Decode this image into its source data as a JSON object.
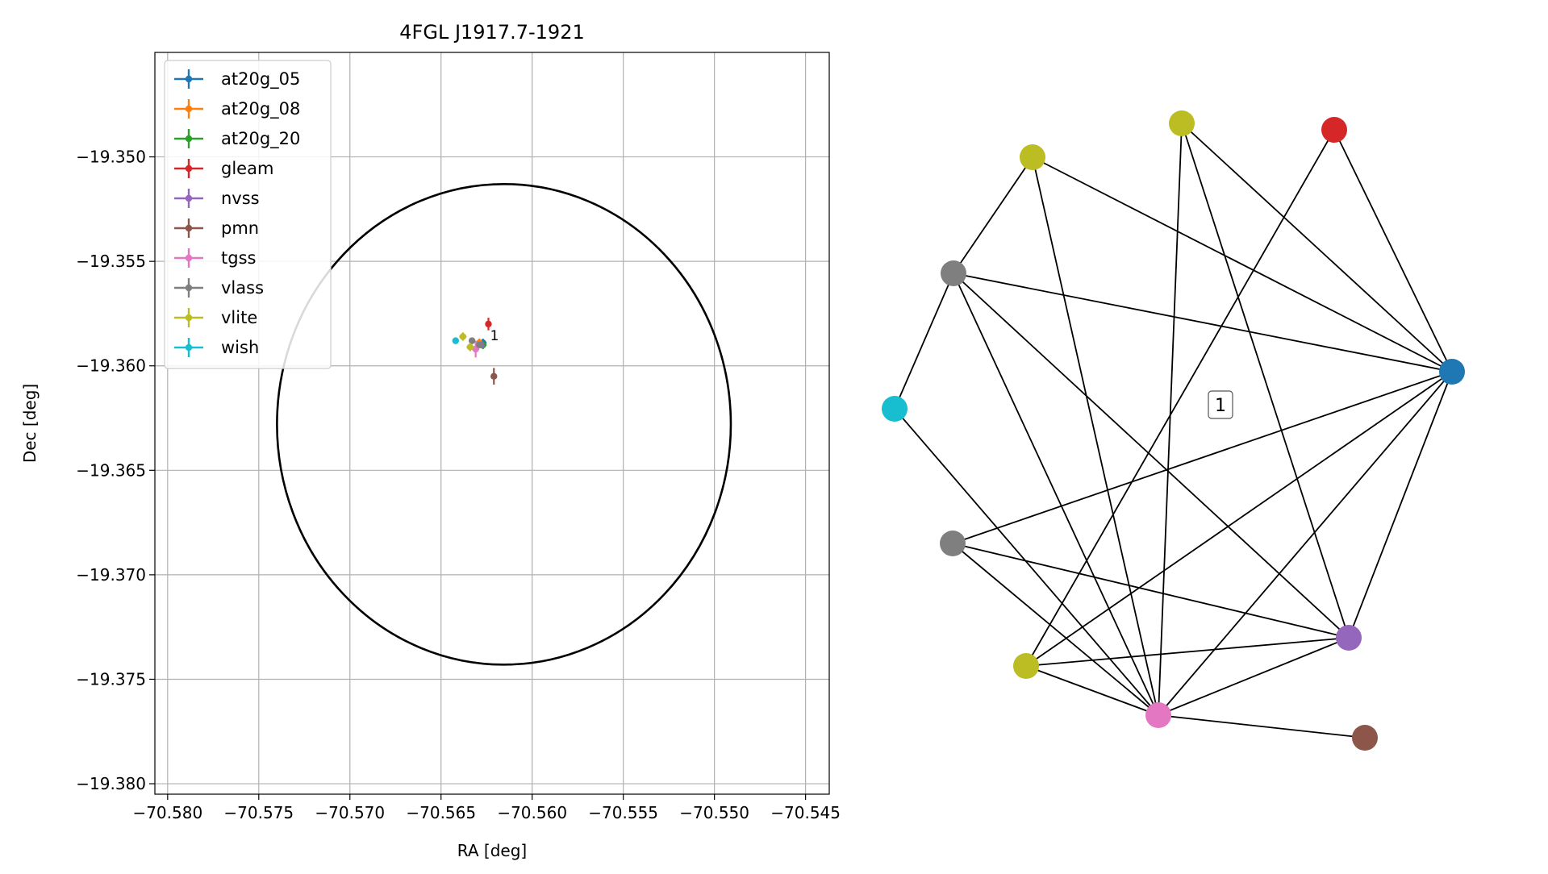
{
  "chart_data": [
    {
      "type": "scatter",
      "title": "4FGL J1917.7-1921",
      "xlabel": "RA [deg]",
      "ylabel": "Dec [deg]",
      "xlim": [
        -70.5807,
        -70.5437
      ],
      "ylim": [
        -19.3805,
        -19.345
      ],
      "x_ticks": [
        -70.58,
        -70.575,
        -70.57,
        -70.565,
        -70.56,
        -70.555,
        -70.55,
        -70.545
      ],
      "x_tick_labels": [
        "−70.580",
        "−70.575",
        "−70.570",
        "−70.565",
        "−70.560",
        "−70.555",
        "−70.550",
        "−70.545"
      ],
      "y_ticks": [
        -19.35,
        -19.355,
        -19.36,
        -19.365,
        -19.37,
        -19.375,
        -19.38
      ],
      "y_tick_labels": [
        "−19.350",
        "−19.355",
        "−19.360",
        "−19.365",
        "−19.370",
        "−19.375",
        "−19.380"
      ],
      "grid": true,
      "legend_position": "upper-left",
      "ellipse": {
        "center": [
          -70.56155,
          -19.3628
        ],
        "ra_semi_axis": 0.01245,
        "dec_semi_axis": 0.0115,
        "color": "#000000"
      },
      "series": [
        {
          "name": "at20g_05",
          "color": "#1f77b4",
          "points": [
            {
              "x": -70.5627,
              "y": -19.3589,
              "xerr": 0.0002,
              "yerr": 0.0002
            }
          ]
        },
        {
          "name": "at20g_08",
          "color": "#ff7f0e",
          "points": [
            {
              "x": -70.5629,
              "y": -19.3589,
              "xerr": 0.0002,
              "yerr": 0.0002
            }
          ]
        },
        {
          "name": "at20g_20",
          "color": "#2ca02c",
          "points": [
            {
              "x": -70.5627,
              "y": -19.359,
              "xerr": 0.0002,
              "yerr": 0.0002
            }
          ]
        },
        {
          "name": "gleam",
          "color": "#d62728",
          "points": [
            {
              "x": -70.5624,
              "y": -19.358,
              "xerr": 0.0001,
              "yerr": 0.0003
            }
          ]
        },
        {
          "name": "nvss",
          "color": "#9467bd",
          "points": [
            {
              "x": -70.5628,
              "y": -19.359,
              "xerr": 0.0001,
              "yerr": 0.0001
            }
          ]
        },
        {
          "name": "pmn",
          "color": "#8c564b",
          "points": [
            {
              "x": -70.5621,
              "y": -19.3605,
              "xerr": 0.0001,
              "yerr": 0.0004
            }
          ]
        },
        {
          "name": "tgss",
          "color": "#e377c2",
          "points": [
            {
              "x": -70.5631,
              "y": -19.3592,
              "xerr": 0.0002,
              "yerr": 0.0004
            }
          ]
        },
        {
          "name": "vlass",
          "color": "#7f7f7f",
          "points": [
            {
              "x": -70.5633,
              "y": -19.3588,
              "xerr": 0.0001,
              "yerr": 0.0001
            },
            {
              "x": -70.5629,
              "y": -19.359,
              "xerr": 0.0001,
              "yerr": 0.0001
            }
          ]
        },
        {
          "name": "vlite",
          "color": "#bcbd22",
          "points": [
            {
              "x": -70.5638,
              "y": -19.3586,
              "xerr": 0.0002,
              "yerr": 0.0002
            },
            {
              "x": -70.5634,
              "y": -19.3591,
              "xerr": 0.0002,
              "yerr": 0.0002
            }
          ]
        },
        {
          "name": "wish",
          "color": "#17becf",
          "points": [
            {
              "x": -70.5642,
              "y": -19.3588,
              "xerr": 0.0001,
              "yerr": 0.0001
            }
          ]
        }
      ],
      "annotations": [
        {
          "text": "1",
          "x": -70.5622,
          "y": -19.3585
        }
      ]
    },
    {
      "type": "network",
      "annotation": "1",
      "nodes": [
        {
          "id": 0,
          "color": "#bcbd22"
        },
        {
          "id": 1,
          "color": "#bcbd22"
        },
        {
          "id": 2,
          "color": "#d62728"
        },
        {
          "id": 3,
          "color": "#7f7f7f"
        },
        {
          "id": 4,
          "color": "#1f77b4"
        },
        {
          "id": 5,
          "color": "#17becf"
        },
        {
          "id": 6,
          "color": "#7f7f7f"
        },
        {
          "id": 7,
          "color": "#9467bd"
        },
        {
          "id": 8,
          "color": "#bcbd22"
        },
        {
          "id": 9,
          "color": "#e377c2"
        },
        {
          "id": 10,
          "color": "#8c564b"
        }
      ],
      "edges": [
        [
          0,
          3
        ],
        [
          0,
          4
        ],
        [
          0,
          9
        ],
        [
          1,
          4
        ],
        [
          1,
          9
        ],
        [
          1,
          7
        ],
        [
          2,
          4
        ],
        [
          2,
          8
        ],
        [
          3,
          5
        ],
        [
          3,
          4
        ],
        [
          3,
          9
        ],
        [
          3,
          7
        ],
        [
          4,
          6
        ],
        [
          4,
          8
        ],
        [
          4,
          9
        ],
        [
          4,
          7
        ],
        [
          5,
          9
        ],
        [
          6,
          9
        ],
        [
          6,
          7
        ],
        [
          8,
          7
        ],
        [
          8,
          9
        ],
        [
          9,
          7
        ],
        [
          9,
          10
        ]
      ]
    }
  ]
}
